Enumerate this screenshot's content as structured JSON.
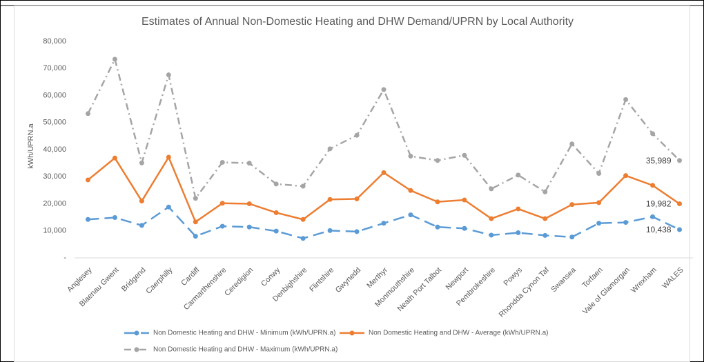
{
  "chart_data": {
    "type": "line",
    "title": "Estimates of Annual Non-Domestic Heating and DHW Demand/UPRN by Local Authority",
    "ylabel": "kWh/UPRN.a",
    "categories": [
      "Anglesey",
      "Blaenau Gwent",
      "Bridgend",
      "Caerphilly",
      "Cardiff",
      "Carmarthenshire",
      "Ceredigion",
      "Conwy",
      "Denbighshire",
      "Flintshire",
      "Gwynedd",
      "Merthyr",
      "Monmouthshire",
      "Neath Port Talbot",
      "Newport",
      "Pembrokeshire",
      "Powys",
      "Rhondda Cynon Taf",
      "Swansea",
      "Torfaen",
      "Vale of Glamorgan",
      "Wrexham",
      "WALES"
    ],
    "series": [
      {
        "name": "Non Domestic Heating and DHW - Minimum (kWh/UPRN.a)",
        "color": "#5b9bd5",
        "line_style": "dashed",
        "values": [
          14200,
          14900,
          12000,
          18800,
          8000,
          11700,
          11400,
          9900,
          7200,
          10100,
          9700,
          12800,
          15900,
          11400,
          10900,
          8400,
          9300,
          8300,
          7700,
          12800,
          13100,
          15200,
          10438
        ],
        "value_labels": [
          null,
          null,
          null,
          null,
          null,
          null,
          null,
          null,
          null,
          null,
          null,
          null,
          null,
          null,
          null,
          null,
          null,
          null,
          null,
          null,
          null,
          null,
          "10,438"
        ]
      },
      {
        "name": "Non Domestic Heating and DHW - Average (kWh/UPRN.a)",
        "color": "#ed7d31",
        "line_style": "solid",
        "values": [
          28800,
          36900,
          21000,
          37200,
          13300,
          20200,
          20000,
          16700,
          14200,
          21600,
          21800,
          31500,
          24900,
          20700,
          21400,
          14500,
          18100,
          14500,
          19700,
          20400,
          30400,
          26800,
          19982
        ],
        "value_labels": [
          null,
          null,
          null,
          null,
          null,
          null,
          null,
          null,
          null,
          null,
          null,
          null,
          null,
          null,
          null,
          null,
          null,
          null,
          null,
          null,
          null,
          null,
          "19,982"
        ]
      },
      {
        "name": "Non Domestic Heating and DHW - Maximum (kWh/UPRN.a)",
        "color": "#a5a5a5",
        "line_style": "dash-dot",
        "values": [
          53300,
          73400,
          35100,
          67600,
          22000,
          35300,
          35000,
          27300,
          26500,
          40300,
          45300,
          62200,
          37600,
          36000,
          37900,
          25500,
          30600,
          24400,
          42100,
          31200,
          58500,
          45900,
          35989
        ],
        "value_labels": [
          null,
          null,
          null,
          null,
          null,
          null,
          null,
          null,
          null,
          null,
          null,
          null,
          null,
          null,
          null,
          null,
          null,
          null,
          null,
          null,
          null,
          null,
          "35,989"
        ]
      }
    ],
    "ylim": [
      0,
      80000
    ],
    "yticks": [
      {
        "value": 0,
        "label": "-"
      },
      {
        "value": 10000,
        "label": "10,000"
      },
      {
        "value": 20000,
        "label": "20,000"
      },
      {
        "value": 30000,
        "label": "30,000"
      },
      {
        "value": 40000,
        "label": "40,000"
      },
      {
        "value": 50000,
        "label": "50,000"
      },
      {
        "value": 60000,
        "label": "60,000"
      },
      {
        "value": 70000,
        "label": "70,000"
      },
      {
        "value": 80000,
        "label": "80,000"
      }
    ],
    "grid": false,
    "legend": "bottom"
  }
}
